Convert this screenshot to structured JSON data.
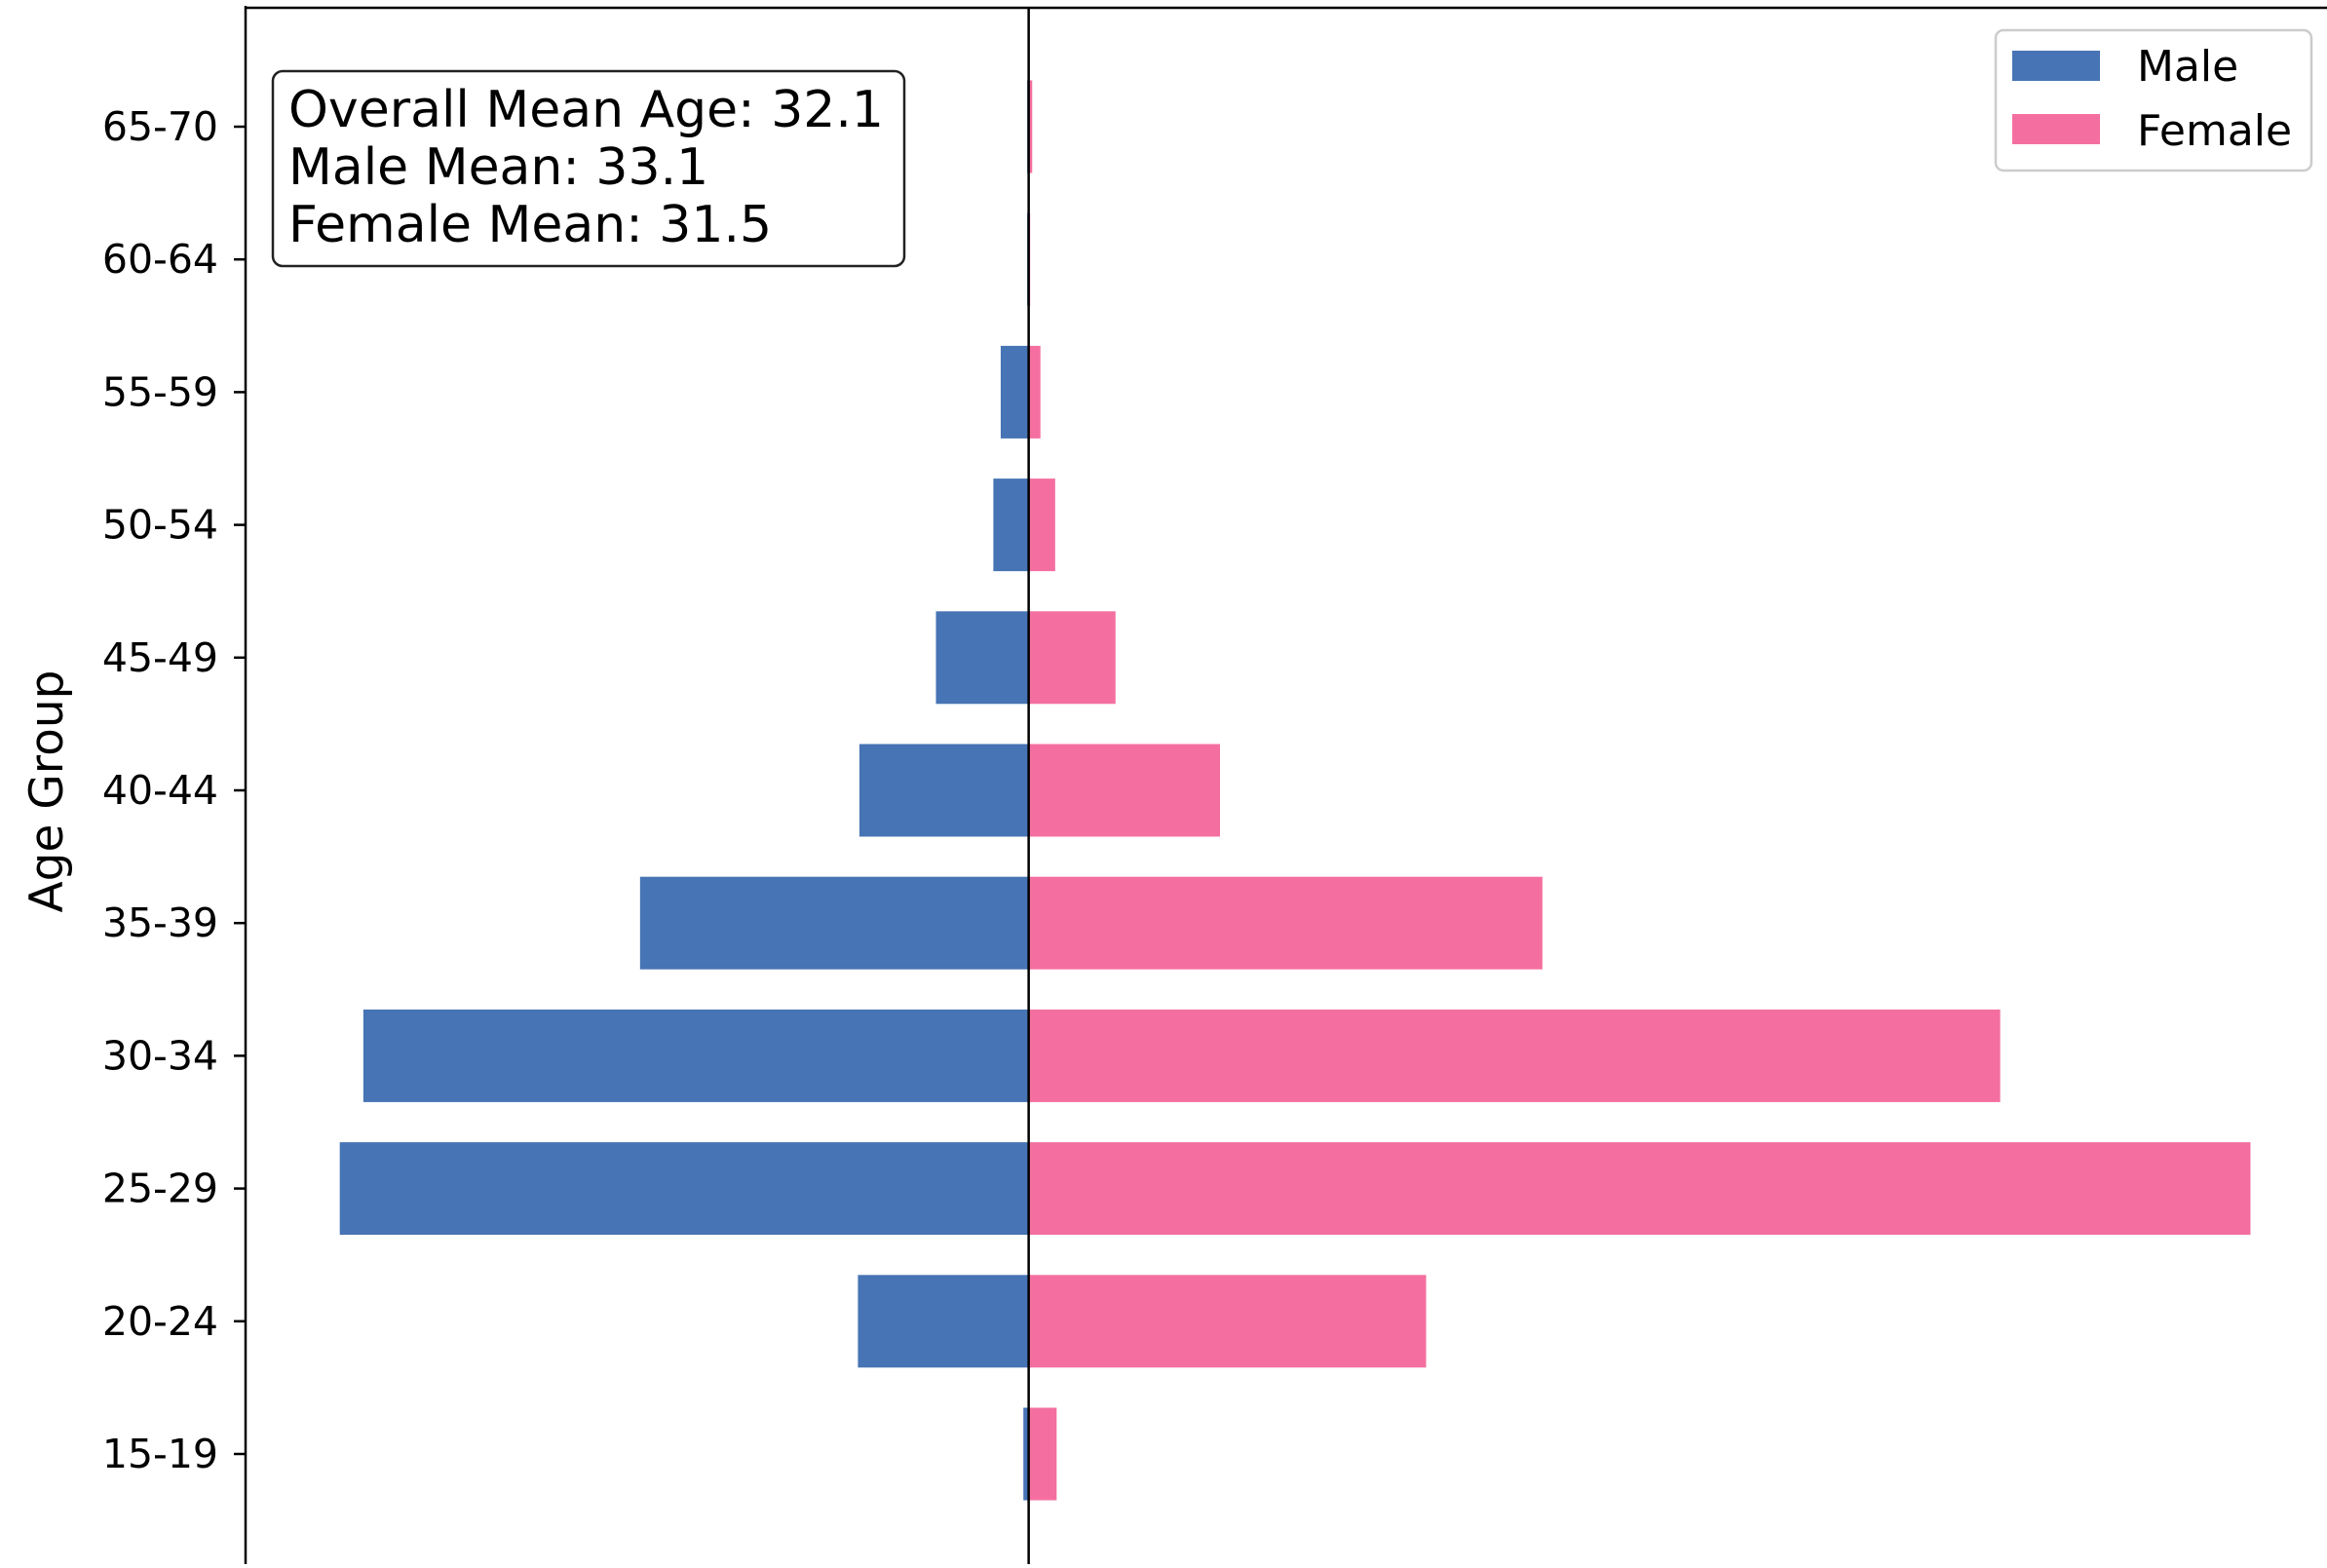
{
  "chart_data": {
    "type": "bar",
    "orientation": "horizontal",
    "layout": "population-pyramid",
    "categories": [
      "15-19",
      "20-24",
      "25-29",
      "30-34",
      "35-39",
      "40-44",
      "45-49",
      "50-54",
      "55-59",
      "60-64",
      "65-70"
    ],
    "series": [
      {
        "name": "Male",
        "color": "#4674b4",
        "direction": "left",
        "values": [
          0.18,
          5.8,
          23.4,
          22.6,
          13.2,
          5.75,
          3.15,
          1.2,
          0.95,
          0.05,
          0.05
        ]
      },
      {
        "name": "Female",
        "color": "#f46f9f",
        "direction": "right",
        "values": [
          0.95,
          13.5,
          41.5,
          33.0,
          17.45,
          6.5,
          2.95,
          0.9,
          0.4,
          0.05,
          0.12
        ]
      }
    ],
    "xlim": [
      -26.6,
      44.1
    ],
    "x_ticks_visible": false,
    "xlabel": "",
    "ylabel": "Age Group",
    "grid": false,
    "center_line": 0,
    "legend": {
      "position": "top-right",
      "entries": [
        "Male",
        "Female"
      ]
    },
    "annotation": {
      "position": "top-left",
      "lines": [
        "Overall Mean Age: 32.1",
        "Male Mean: 33.1",
        "Female Mean: 31.5"
      ]
    }
  }
}
